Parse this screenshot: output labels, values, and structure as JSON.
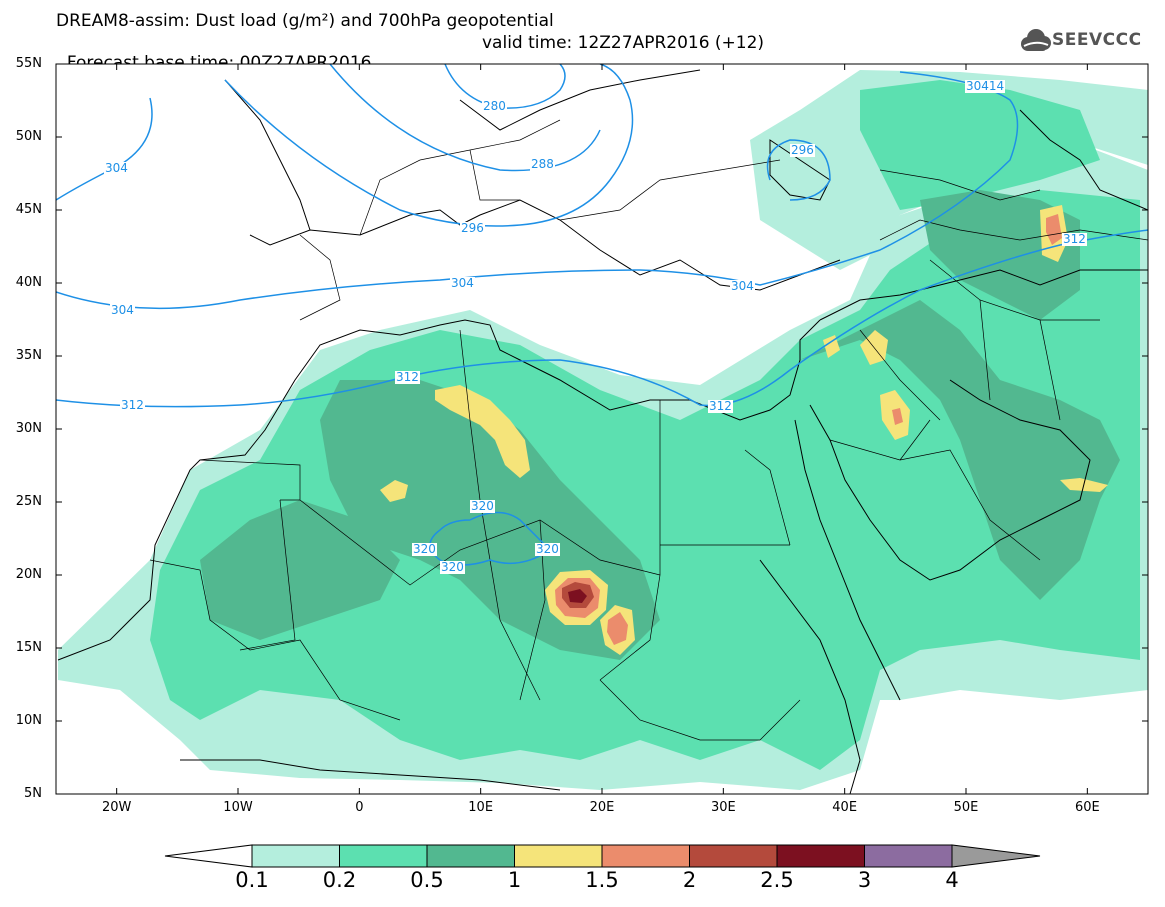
{
  "header": {
    "title_line1": "DREAM8-assim: Dust load (g/m²) and 700hPa geopotential",
    "forecast_base": "Forecast base time: 00Z27APR2016",
    "valid_time": "valid time: 12Z27APR2016 (+12)",
    "logo_text": "SEEVCCC"
  },
  "map": {
    "lat_labels": [
      "55N",
      "50N",
      "45N",
      "40N",
      "35N",
      "30N",
      "25N",
      "20N",
      "15N",
      "10N",
      "5N"
    ],
    "lon_labels": [
      "20W",
      "10W",
      "0",
      "10E",
      "20E",
      "30E",
      "40E",
      "50E",
      "60E"
    ],
    "lon_range": [
      -25,
      65
    ],
    "lat_range": [
      5,
      55
    ],
    "contour_labels": [
      "280",
      "288",
      "296",
      "296",
      "304",
      "304",
      "304",
      "304",
      "30414",
      "312",
      "312",
      "312",
      "312",
      "320",
      "320",
      "320",
      "320"
    ],
    "contour_color": "#1e90e6"
  },
  "colorbar": {
    "levels": [
      "0.1",
      "0.2",
      "0.5",
      "1",
      "1.5",
      "2",
      "2.5",
      "3",
      "4"
    ],
    "colors": [
      "#b4eedd",
      "#5ce0b0",
      "#52b890",
      "#f5e47a",
      "#eb8c6c",
      "#b44a3c",
      "#7c1020",
      "#8c6ca0",
      "#9a9a9a"
    ]
  }
}
